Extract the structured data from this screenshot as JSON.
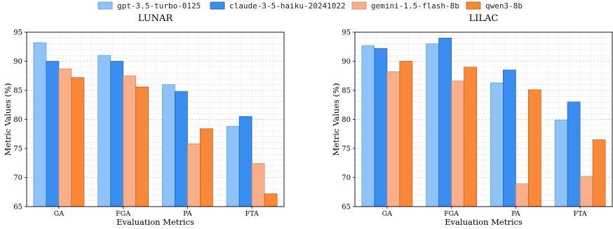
{
  "chart_data": [
    {
      "type": "bar",
      "title": "LUNAR",
      "xlabel": "Evaluation Metrics",
      "ylabel": "Metric Values (%)",
      "ylim": [
        65,
        95
      ],
      "yticks": [
        65,
        70,
        75,
        80,
        85,
        90,
        95
      ],
      "grid": true,
      "categories": [
        "GA",
        "FGA",
        "PA",
        "FTA"
      ],
      "series": [
        {
          "name": "gpt-3.5-turbo-0125",
          "values": [
            93.2,
            91.0,
            86.0,
            78.8
          ]
        },
        {
          "name": "claude-3-5-haiku-20241022",
          "values": [
            90.0,
            90.0,
            84.8,
            80.5
          ]
        },
        {
          "name": "gemini-1.5-flash-8b",
          "values": [
            88.7,
            87.5,
            75.8,
            72.4
          ]
        },
        {
          "name": "qwen3-8b",
          "values": [
            87.2,
            85.6,
            78.4,
            67.2
          ]
        }
      ]
    },
    {
      "type": "bar",
      "title": "LILAC",
      "xlabel": "Evaluation Metrics",
      "ylabel": "Metric Values (%)",
      "ylim": [
        65,
        95
      ],
      "yticks": [
        65,
        70,
        75,
        80,
        85,
        90,
        95
      ],
      "grid": true,
      "categories": [
        "GA",
        "FGA",
        "PA",
        "FTA"
      ],
      "series": [
        {
          "name": "gpt-3.5-turbo-0125",
          "values": [
            92.7,
            93.0,
            86.3,
            79.9
          ]
        },
        {
          "name": "claude-3-5-haiku-20241022",
          "values": [
            92.2,
            94.0,
            88.5,
            83.0
          ]
        },
        {
          "name": "gemini-1.5-flash-8b",
          "values": [
            88.2,
            86.6,
            68.9,
            70.2
          ]
        },
        {
          "name": "qwen3-8b",
          "values": [
            90.0,
            89.0,
            85.1,
            76.5
          ]
        }
      ]
    }
  ],
  "legend": {
    "placement": "top-center",
    "items": [
      {
        "label": "gpt-3.5-turbo-0125",
        "color": "#8ec3f9"
      },
      {
        "label": "claude-3-5-haiku-20241022",
        "color": "#3a8ef0"
      },
      {
        "label": "gemini-1.5-flash-8b",
        "color": "#f9b08a"
      },
      {
        "label": "qwen3-8b",
        "color": "#f98938"
      }
    ]
  },
  "colors": {
    "series": [
      "#8ec3f9",
      "#3a8ef0",
      "#f9b08a",
      "#f98938"
    ],
    "edges": [
      "#5a9ad8",
      "#1c5ea8",
      "#c98560",
      "#b85a1c"
    ]
  }
}
